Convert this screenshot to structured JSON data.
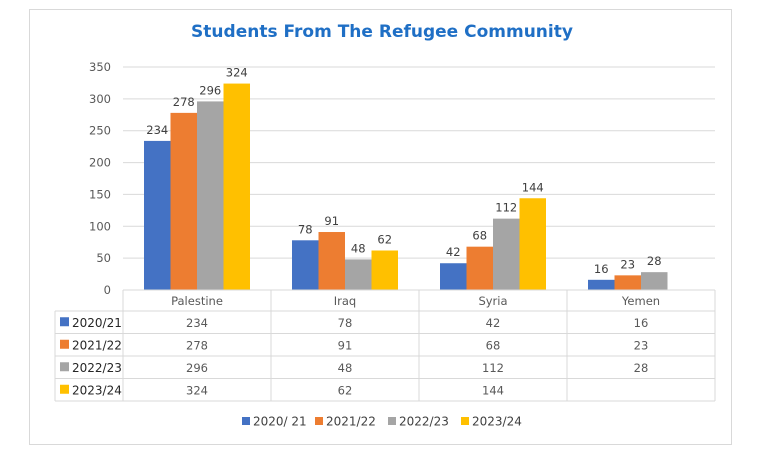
{
  "chart_data": {
    "type": "bar",
    "title": "Students From The Refugee Community",
    "categories": [
      "Palestine",
      "Iraq",
      "Syria",
      "Yemen"
    ],
    "series": [
      {
        "name": "2020/21",
        "color": "#4472c4",
        "values": [
          234,
          78,
          42,
          16
        ]
      },
      {
        "name": "2021/22",
        "color": "#ed7d31",
        "values": [
          278,
          91,
          68,
          23
        ]
      },
      {
        "name": "2022/23",
        "color": "#a5a5a5",
        "values": [
          296,
          48,
          112,
          28
        ]
      },
      {
        "name": "2023/24",
        "color": "#ffc000",
        "values": [
          324,
          62,
          144,
          null
        ]
      }
    ],
    "legend_labels": [
      "2020/ 21",
      "2021/22",
      "2022/23",
      "2023/24"
    ],
    "ylim": [
      0,
      350
    ],
    "yticks": [
      0,
      50,
      100,
      150,
      200,
      250,
      300,
      350
    ],
    "xlabel": "",
    "ylabel": "",
    "grid": true,
    "data_table": true,
    "legend_position": "bottom"
  }
}
